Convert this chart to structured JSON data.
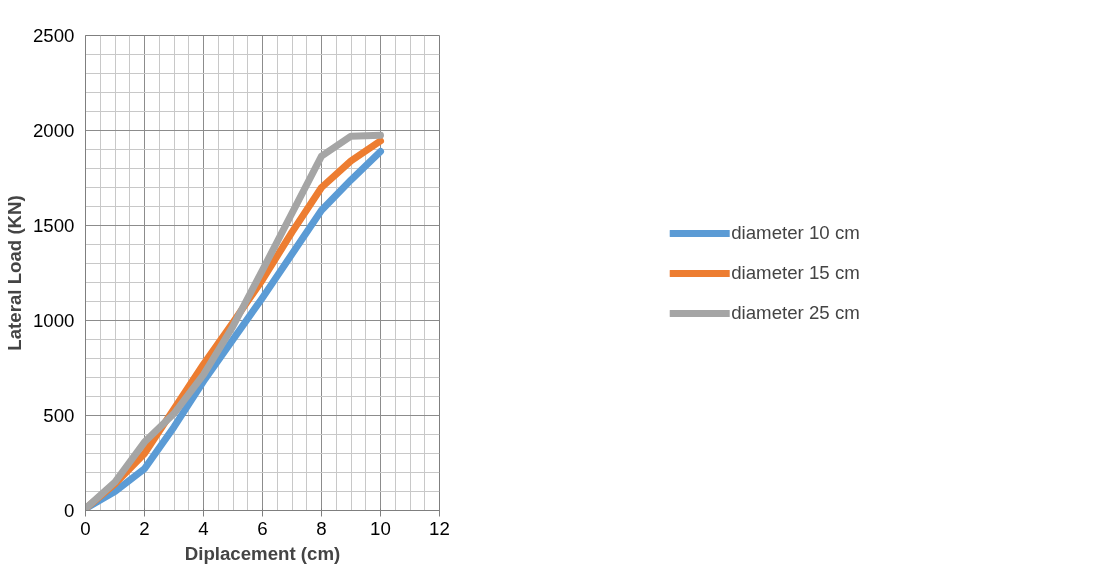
{
  "chart_data": {
    "type": "line",
    "xlabel": "Diplacement (cm)",
    "ylabel": "Lateral Load (KN)",
    "x": [
      0,
      1,
      2,
      3,
      4,
      5,
      6,
      7,
      8,
      9,
      10
    ],
    "series": [
      {
        "name": "diameter 10 cm",
        "color": "#5b9bd5",
        "values": [
          10,
          100,
          220,
          440,
          680,
          900,
          1120,
          1350,
          1580,
          1740,
          1890
        ]
      },
      {
        "name": "diameter 15 cm",
        "color": "#ed7d31",
        "values": [
          10,
          140,
          300,
          535,
          770,
          990,
          1215,
          1465,
          1700,
          1840,
          1945
        ]
      },
      {
        "name": "diameter 25 cm",
        "color": "#a5a5a5",
        "values": [
          10,
          150,
          360,
          510,
          715,
          970,
          1265,
          1565,
          1865,
          1970,
          1975
        ]
      }
    ],
    "xlim": [
      0,
      12
    ],
    "xticks": [
      0,
      2,
      4,
      6,
      8,
      10,
      12
    ],
    "ylim": [
      0,
      2500
    ],
    "yticks": [
      0,
      500,
      1000,
      1500,
      2000,
      2500
    ],
    "grid": true,
    "legend": "right",
    "line_style": "solid"
  }
}
